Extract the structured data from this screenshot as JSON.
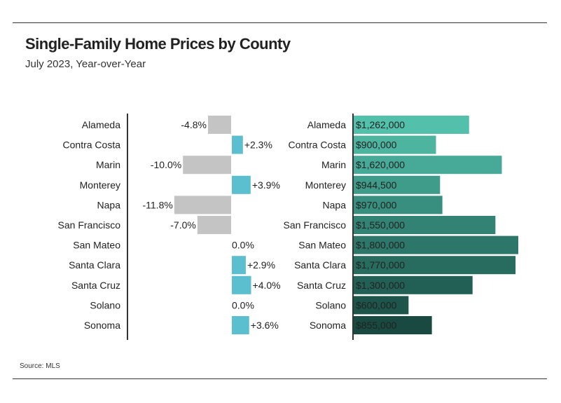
{
  "title": "Single-Family Home Prices by County",
  "subtitle": "July 2023, Year-over-Year",
  "source": "Source: MLS",
  "chart_data": [
    {
      "type": "bar",
      "orientation": "horizontal",
      "categories": [
        "Alameda",
        "Contra Costa",
        "Marin",
        "Monterey",
        "Napa",
        "San Francisco",
        "San Mateo",
        "Santa Clara",
        "Santa Cruz",
        "Solano",
        "Sonoma"
      ],
      "values": [
        -4.8,
        2.3,
        -10.0,
        3.9,
        -11.8,
        -7.0,
        0.0,
        2.9,
        4.0,
        0.0,
        3.6
      ],
      "labels": [
        "-4.8%",
        "+2.3%",
        "-10.0%",
        "+3.9%",
        "-11.8%",
        "-7.0%",
        "0.0%",
        "+2.9%",
        "+4.0%",
        "0.0%",
        "+3.6%"
      ],
      "colors": {
        "negative": "#c4c4c4",
        "positive": "#5bbfcf"
      }
    },
    {
      "type": "bar",
      "orientation": "horizontal",
      "categories": [
        "Alameda",
        "Contra Costa",
        "Marin",
        "Monterey",
        "Napa",
        "San Francisco",
        "San Mateo",
        "Santa Clara",
        "Santa Cruz",
        "Solano",
        "Sonoma"
      ],
      "values": [
        1262000,
        900000,
        1620000,
        944500,
        970000,
        1550000,
        1800000,
        1770000,
        1300000,
        600000,
        855000
      ],
      "labels": [
        "$1,262,000",
        "$900,000",
        "$1,620,000",
        "$944,500",
        "$970,000",
        "$1,550,000",
        "$1,800,000",
        "$1,770,000",
        "$1,300,000",
        "$600,000",
        "$855,000"
      ],
      "colors": [
        "#52c0ab",
        "#4db4a0",
        "#47a997",
        "#3f9c8a",
        "#398f7f",
        "#338374",
        "#2d776a",
        "#286c60",
        "#226055",
        "#1d554b",
        "#184a42"
      ]
    }
  ]
}
